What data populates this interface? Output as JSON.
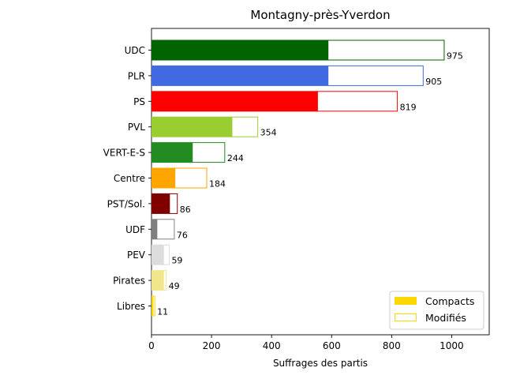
{
  "chart_data": {
    "type": "bar",
    "orientation": "horizontal",
    "stacked": true,
    "title": "Montagny-près-Yverdon",
    "xlabel": "Suffrages des partis",
    "ylabel": "",
    "xlim": [
      0,
      1125
    ],
    "xticks": [
      "0",
      "200",
      "400",
      "600",
      "800",
      "1000"
    ],
    "xtick_values": [
      0,
      200,
      400,
      600,
      800,
      1000
    ],
    "grid": false,
    "legend": {
      "placement": "bottom-right",
      "entries": [
        {
          "label": "Compacts",
          "style": "filled",
          "color": "#ffd700"
        },
        {
          "label": "Modifiés",
          "style": "outline",
          "color": "#ffd700"
        }
      ]
    },
    "categories": [
      "UDC",
      "PLR",
      "PS",
      "PVL",
      "VERT-E-S",
      "Centre",
      "PST/Sol.",
      "UDF",
      "PEV",
      "Pirates",
      "Libres"
    ],
    "colors": [
      "#006400",
      "#4169e1",
      "#ff0000",
      "#9acd32",
      "#228b22",
      "#ffa500",
      "#800000",
      "#808080",
      "#dcdcdc",
      "#f0e68c",
      "#ffd700"
    ],
    "series": [
      {
        "name": "Compacts",
        "values": [
          588,
          588,
          553,
          268,
          136,
          78,
          60,
          18,
          40,
          40,
          5
        ]
      },
      {
        "name": "Modifiés",
        "values": [
          387,
          317,
          266,
          86,
          108,
          106,
          26,
          58,
          19,
          9,
          6
        ]
      }
    ],
    "totals": [
      "975",
      "905",
      "819",
      "354",
      "244",
      "184",
      "86",
      "76",
      "59",
      "49",
      "11"
    ]
  }
}
